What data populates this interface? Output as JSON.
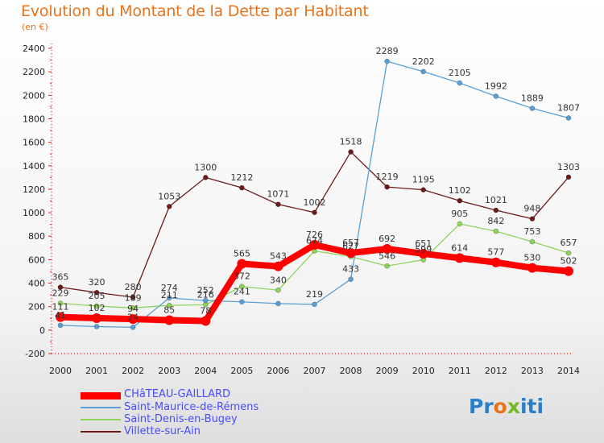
{
  "header": {
    "title": "Evolution du Montant de la Dette par Habitant",
    "subtitle": "(en €)"
  },
  "chart_data": {
    "type": "line",
    "title": "Evolution du Montant de la Dette par Habitant",
    "subtitle": "(en €)",
    "xlabel": "",
    "ylabel": "",
    "x": [
      "2000",
      "2001",
      "2002",
      "2003",
      "2004",
      "2005",
      "2006",
      "2007",
      "2008",
      "2009",
      "2010",
      "2011",
      "2012",
      "2013",
      "2014"
    ],
    "ylim": [
      -200,
      2400
    ],
    "yticks": [
      -200,
      0,
      200,
      400,
      600,
      800,
      1000,
      1200,
      1400,
      1600,
      1800,
      2000,
      2200,
      2400
    ],
    "grid": false,
    "legend_position": "bottom",
    "series": [
      {
        "name": "Villette-sur-Ain",
        "color": "#6b1a1a",
        "values": [
          365,
          320,
          280,
          1053,
          1300,
          1212,
          1071,
          1002,
          1518,
          1219,
          1195,
          1102,
          1021,
          948,
          1303
        ],
        "labels": [
          "365",
          "320",
          "280",
          "1053",
          "1300",
          "1212",
          "1071",
          "1002",
          "1518",
          "1219",
          "1195",
          "1102",
          "1021",
          "948",
          "1303"
        ]
      },
      {
        "name": "Saint-Denis-en-Bugey",
        "color": "#8ed35a",
        "values": [
          229,
          205,
          189,
          211,
          216,
          372,
          340,
          674,
          627,
          546,
          599,
          905,
          842,
          753,
          657
        ],
        "labels": [
          "229",
          "205",
          "189",
          "211",
          "216",
          "372",
          "340",
          "674",
          "627",
          "546",
          "599",
          "905",
          "842",
          "753",
          "657"
        ]
      },
      {
        "name": "Saint-Maurice-de-Rémens",
        "color": "#5a9fd4",
        "values": [
          41,
          30,
          24,
          274,
          252,
          241,
          226,
          219,
          433,
          2289,
          2202,
          2105,
          1992,
          1889,
          1807
        ],
        "labels": [
          "41",
          "",
          "24",
          "274",
          "252",
          "241",
          "",
          "219",
          "433",
          "2289",
          "2202",
          "2105",
          "1992",
          "1889",
          "1807"
        ]
      },
      {
        "name": "CHâTEAU-GAILLARD",
        "color": "#ff0000",
        "values": [
          111,
          102,
          94,
          85,
          78,
          565,
          543,
          726,
          657,
          692,
          651,
          614,
          577,
          530,
          502
        ],
        "labels": [
          "111",
          "102",
          "94",
          "85",
          "78",
          "565",
          "543",
          "726",
          "657",
          "692",
          "651",
          "614",
          "577",
          "530",
          "502"
        ]
      }
    ]
  },
  "legend": {
    "items": [
      {
        "label": "CHâTEAU-GAILLARD",
        "color": "#ff0000"
      },
      {
        "label": "Saint-Maurice-de-Rémens",
        "color": "#5a9fd4"
      },
      {
        "label": "Saint-Denis-en-Bugey",
        "color": "#8ed35a"
      },
      {
        "label": "Villette-sur-Ain",
        "color": "#6b1a1a"
      }
    ]
  },
  "logo": {
    "part1": "Pr",
    "part2": "o",
    "part3": "x",
    "part4": "iti"
  }
}
